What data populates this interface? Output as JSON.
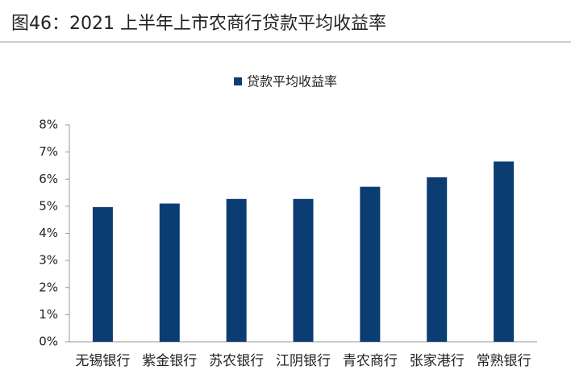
{
  "chart_data": {
    "type": "bar",
    "title": "图46：2021 上半年上市农商行贷款平均收益率",
    "categories": [
      "无锡银行",
      "紫金银行",
      "苏农银行",
      "江阴银行",
      "青农商行",
      "张家港行",
      "常熟银行"
    ],
    "series": [
      {
        "name": "贷款平均收益率",
        "color": "#0b3d73",
        "values": [
          4.97,
          5.1,
          5.27,
          5.27,
          5.72,
          6.07,
          6.65
        ]
      }
    ],
    "ylim": [
      0,
      8
    ],
    "yticks": [
      {
        "value": 0,
        "label": "0%"
      },
      {
        "value": 1,
        "label": "1%"
      },
      {
        "value": 2,
        "label": "2%"
      },
      {
        "value": 3,
        "label": "3%"
      },
      {
        "value": 4,
        "label": "4%"
      },
      {
        "value": 5,
        "label": "5%"
      },
      {
        "value": 6,
        "label": "6%"
      },
      {
        "value": 7,
        "label": "7%"
      },
      {
        "value": 8,
        "label": "8%"
      }
    ],
    "grid": false,
    "legend": "top"
  }
}
